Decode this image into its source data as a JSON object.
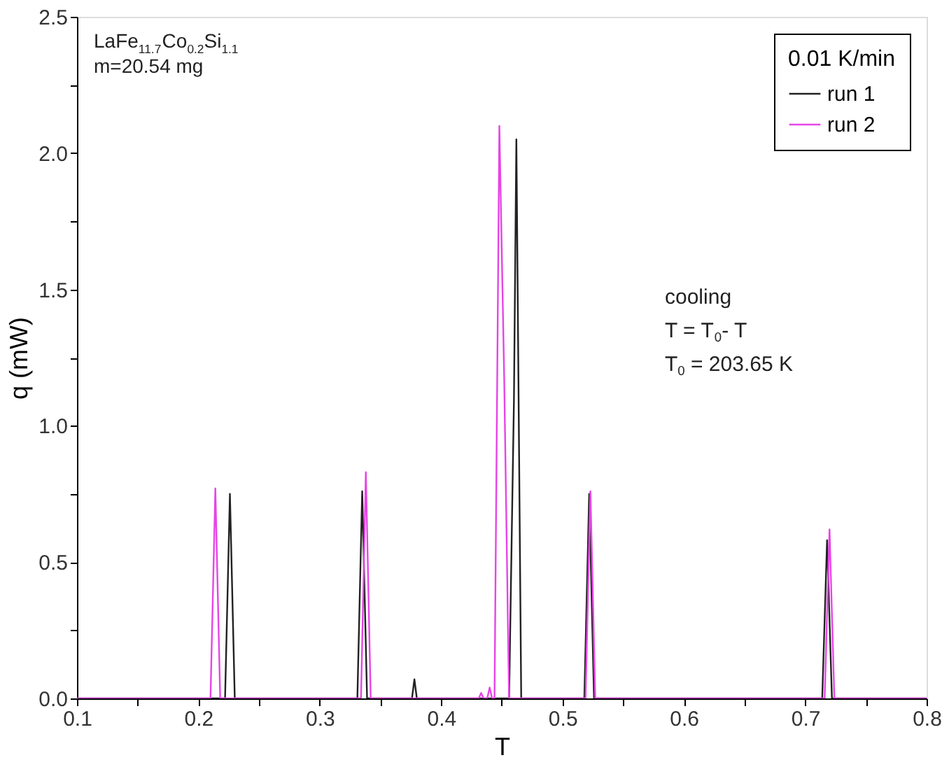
{
  "chart_data": {
    "type": "line",
    "xlabel": "T",
    "ylabel": "q (mW)",
    "legend_title": "0.01 K/min",
    "legend": "top right",
    "grid": false,
    "line_style": "solid",
    "marker": "none",
    "xlim": [
      0.1,
      0.8
    ],
    "ylim": [
      0,
      2.5
    ],
    "xticks": [
      0.1,
      {
        "value": 0.15,
        "label": null
      },
      0.2,
      {
        "value": 0.25,
        "label": null
      },
      0.3,
      {
        "value": 0.35,
        "label": null
      },
      0.4,
      {
        "value": 0.45,
        "label": null
      },
      0.5,
      {
        "value": 0.55,
        "label": null
      },
      0.6,
      {
        "value": 0.65,
        "label": null
      },
      0.7,
      {
        "value": 0.75,
        "label": null
      },
      0.8
    ],
    "yticks": [
      {
        "value": 0,
        "label": "0.0"
      },
      {
        "value": 0.25,
        "label": null
      },
      0.5,
      {
        "value": 0.75,
        "label": null
      },
      {
        "value": 1,
        "label": "1.0"
      },
      {
        "value": 1.25,
        "label": null
      },
      1.5,
      {
        "value": 1.75,
        "label": null
      },
      {
        "value": 2,
        "label": "2.0"
      },
      {
        "value": 2.25,
        "label": null
      },
      2.5
    ],
    "annotations": [
      "LaFe$_{11.7}$Co$_{0.2}$Si$_{1.1}$",
      "m=20.54 mg",
      "cooling",
      "T = T$_{0}$- T",
      "T$_{0}$ = 203.65 K"
    ],
    "series": [
      {
        "name": "run 1",
        "color": "#222222",
        "x": [
          0.1,
          0.222,
          0.226,
          0.23,
          0.331,
          0.335,
          0.339,
          0.376,
          0.378,
          0.38,
          0.456,
          0.46,
          0.462,
          0.466,
          0.518,
          0.522,
          0.526,
          0.714,
          0.718,
          0.722,
          0.8
        ],
        "values": [
          0,
          0,
          0.75,
          0,
          0,
          0.76,
          0,
          0,
          0.07,
          0,
          0,
          1.09,
          2.05,
          0,
          0,
          0.75,
          0,
          0,
          0.58,
          0,
          0
        ]
      },
      {
        "name": "run 2",
        "color": "#e645e6",
        "x": [
          0.1,
          0.21,
          0.214,
          0.218,
          0.334,
          0.338,
          0.342,
          0.431,
          0.433,
          0.435,
          0.438,
          0.44,
          0.442,
          0.444,
          0.448,
          0.452,
          0.456,
          0.519,
          0.523,
          0.527,
          0.716,
          0.72,
          0.724,
          0.8
        ],
        "values": [
          0,
          0,
          0.77,
          0,
          0,
          0.83,
          0,
          0,
          0.02,
          0,
          0,
          0.04,
          0,
          0,
          2.1,
          1.17,
          0,
          0,
          0.76,
          0,
          0,
          0.62,
          0,
          0
        ]
      }
    ]
  }
}
